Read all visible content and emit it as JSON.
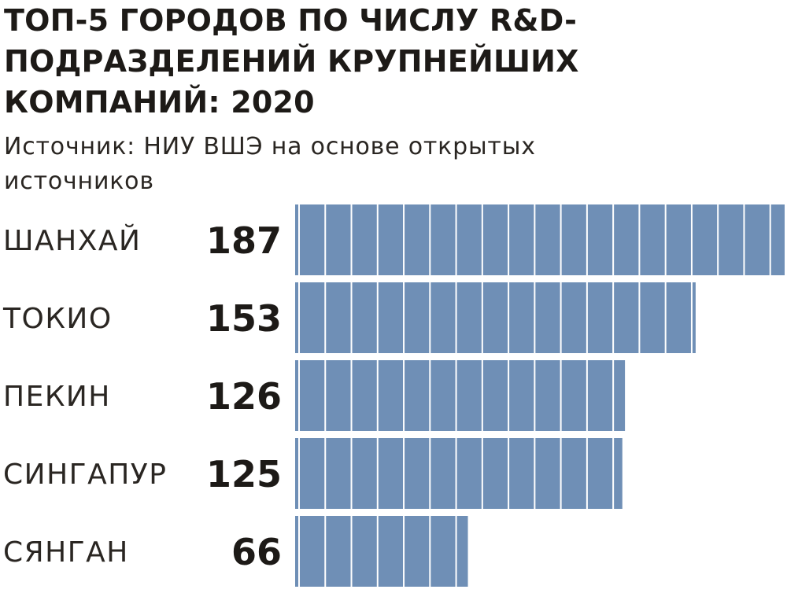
{
  "chart_data": {
    "type": "bar",
    "orientation": "horizontal",
    "title": "ТОП-5 ГОРОДОВ ПО ЧИСЛУ R&D-ПОДРАЗДЕЛЕНИЙ КРУПНЕЙШИХ КОМПАНИЙ: 2020",
    "subtitle": "Источник: НИУ ВШЭ на основе открытых источников",
    "categories": [
      "ШАНХАЙ",
      "ТОКИО",
      "ПЕКИН",
      "СИНГАПУР",
      "СЯНГАН"
    ],
    "values": [
      187,
      153,
      126,
      125,
      66
    ],
    "value_labels": [
      "187",
      "153",
      "126",
      "125",
      "66"
    ],
    "segment_unit": 10,
    "bar_color": "#6f8fb6",
    "segment_divider_color": "#ffffff",
    "grid": false,
    "legend": "none"
  }
}
